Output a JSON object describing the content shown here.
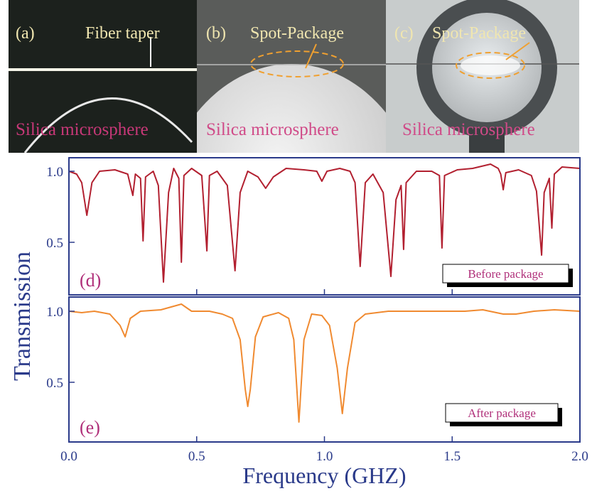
{
  "photos": [
    {
      "label": "(a)",
      "caption": "Fiber taper",
      "sphere": "Silica microsphere"
    },
    {
      "label": "(b)",
      "caption": "Spot-Package",
      "sphere": "Silica microsphere"
    },
    {
      "label": "(c)",
      "caption": "Spot-Package",
      "sphere": "Silica microsphere"
    }
  ],
  "ylabel": "Transmission",
  "chart_data": [
    {
      "type": "line",
      "label": "(d)",
      "x": [
        0,
        0.03,
        0.05,
        0.07,
        0.09,
        0.12,
        0.18,
        0.23,
        0.25,
        0.26,
        0.28,
        0.29,
        0.3,
        0.33,
        0.35,
        0.37,
        0.39,
        0.41,
        0.43,
        0.44,
        0.45,
        0.48,
        0.52,
        0.54,
        0.55,
        0.58,
        0.62,
        0.65,
        0.67,
        0.7,
        0.74,
        0.77,
        0.8,
        0.85,
        0.92,
        0.97,
        0.99,
        1.01,
        1.06,
        1.1,
        1.12,
        1.14,
        1.16,
        1.19,
        1.23,
        1.26,
        1.28,
        1.3,
        1.31,
        1.32,
        1.36,
        1.42,
        1.45,
        1.46,
        1.47,
        1.52,
        1.58,
        1.65,
        1.68,
        1.69,
        1.7,
        1.71,
        1.76,
        1.81,
        1.83,
        1.85,
        1.86,
        1.88,
        1.89,
        1.9,
        1.93,
        2
      ],
      "series": [
        {
          "name": "Before package",
          "color": "#b22030",
          "values": [
            1,
            0.98,
            0.92,
            0.69,
            0.92,
            1,
            1.01,
            0.98,
            0.83,
            0.98,
            0.95,
            0.51,
            0.96,
            1,
            0.9,
            0.22,
            0.85,
            1.02,
            0.95,
            0.36,
            0.97,
            1.02,
            0.97,
            0.44,
            0.97,
            1,
            0.9,
            0.3,
            0.85,
            1,
            0.96,
            0.88,
            0.96,
            1.02,
            1.01,
            1,
            0.93,
            1,
            1.02,
            1,
            0.92,
            0.33,
            0.92,
            0.98,
            0.85,
            0.26,
            0.8,
            0.9,
            0.45,
            0.92,
            1,
            1,
            0.97,
            0.46,
            0.97,
            1.01,
            1.02,
            1.05,
            1.02,
            0.98,
            0.87,
            0.99,
            1.01,
            0.97,
            0.86,
            0.41,
            0.85,
            0.95,
            0.6,
            0.98,
            1.03,
            1.02
          ]
        }
      ],
      "xlim": [
        0,
        2
      ],
      "xticks": [
        0,
        0.5,
        1,
        1.5,
        2
      ],
      "ylim": [
        0.13,
        1.095
      ],
      "yticks": [
        0.5,
        {
          "value": 1,
          "label": "1.0"
        }
      ]
    },
    {
      "type": "line",
      "label": "(e)",
      "xlabel": "Frequency (GHZ)",
      "x": [
        0,
        0.05,
        0.1,
        0.16,
        0.2,
        0.22,
        0.24,
        0.28,
        0.36,
        0.4,
        0.44,
        0.48,
        0.55,
        0.6,
        0.64,
        0.67,
        0.69,
        0.7,
        0.71,
        0.73,
        0.76,
        0.82,
        0.86,
        0.88,
        0.9,
        0.92,
        0.95,
        0.99,
        1.02,
        1.05,
        1.07,
        1.09,
        1.12,
        1.16,
        1.25,
        1.35,
        1.45,
        1.55,
        1.62,
        1.7,
        1.75,
        1.82,
        1.9,
        2
      ],
      "series": [
        {
          "name": "After package",
          "color": "#f08a30",
          "values": [
            1,
            0.99,
            1,
            0.98,
            0.9,
            0.82,
            0.95,
            1,
            1.01,
            1.03,
            1.05,
            1,
            1,
            0.98,
            0.95,
            0.8,
            0.45,
            0.33,
            0.45,
            0.82,
            0.96,
            0.99,
            0.95,
            0.8,
            0.22,
            0.8,
            0.98,
            0.97,
            0.9,
            0.6,
            0.28,
            0.6,
            0.92,
            0.98,
            1,
            1,
            1,
            1,
            1.01,
            0.98,
            0.98,
            1,
            1.01,
            1
          ]
        }
      ],
      "xlim": [
        0,
        2
      ],
      "xticks": [
        {
          "value": 0,
          "label": "0.0"
        },
        0.5,
        {
          "value": 1,
          "label": "1.0"
        },
        1.5,
        {
          "value": 2,
          "label": "2.0"
        }
      ],
      "ylim": [
        0.08,
        1.1
      ],
      "yticks": [
        0.5,
        {
          "value": 1,
          "label": "1.0"
        }
      ]
    }
  ]
}
